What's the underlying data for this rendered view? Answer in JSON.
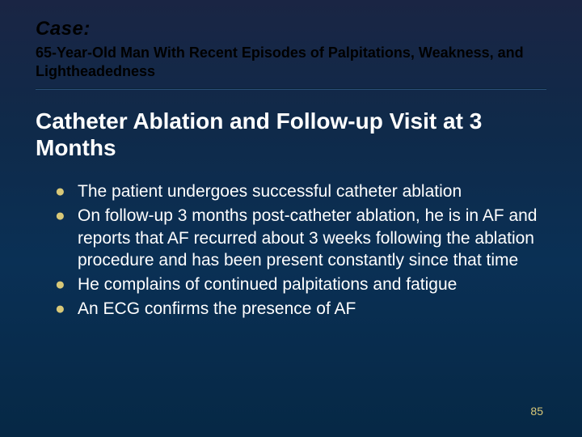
{
  "header": {
    "case_label": "Case:",
    "subtitle": "65-Year-Old Man With Recent Episodes of Palpitations, Weakness, and Lightheadedness"
  },
  "title": "Catheter Ablation and Follow-up Visit at 3 Months",
  "bullets": [
    "The patient undergoes successful catheter ablation",
    "On follow-up 3 months post-catheter ablation, he is in AF and reports that AF recurred about 3 weeks following the ablation procedure and has been present constantly since that time",
    "He complains of continued palpitations and fatigue",
    "An ECG confirms the presence of AF"
  ],
  "page_number": "85",
  "style": {
    "case_label_fontsize": 24,
    "subtitle_fontsize": 18,
    "title_fontsize": 28,
    "bullet_fontsize": 21,
    "bullet_marker_fontsize": 14,
    "page_num_fontsize": 14,
    "bullet_marker_color": "#d8c878",
    "page_num_color": "#d8c878",
    "header_text_color": "#000000",
    "body_text_color": "#ffffff",
    "bg_gradient_top": "#1a2544",
    "bg_gradient_bottom": "#062845"
  }
}
